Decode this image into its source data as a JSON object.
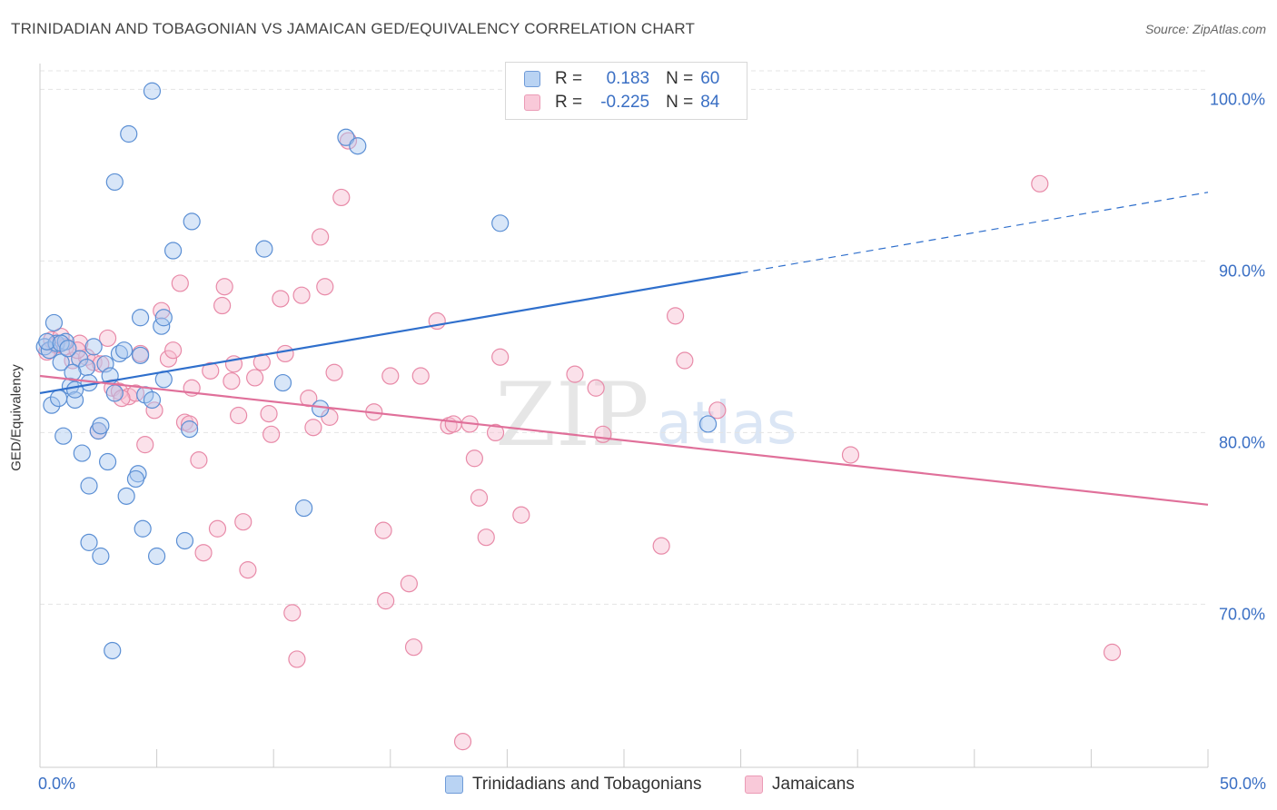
{
  "header": {
    "title": "TRINIDADIAN AND TOBAGONIAN VS JAMAICAN GED/EQUIVALENCY CORRELATION CHART",
    "source": "Source: ZipAtlas.com"
  },
  "legend": {
    "rows": [
      {
        "r_label": "R =",
        "r_value": "0.183",
        "n_label": "N =",
        "n_value": "60"
      },
      {
        "r_label": "R =",
        "r_value": "-0.225",
        "n_label": "N =",
        "n_value": "84"
      }
    ]
  },
  "bottom_legend": [
    "Trinidadians and Tobagonians",
    "Jamaicans"
  ],
  "watermark": {
    "zip": "ZIP",
    "atlas": "atlas"
  },
  "colors": {
    "blue_fill": "#a8c8f0",
    "blue_stroke": "#5b8fd4",
    "blue_line": "#2f6fcc",
    "pink_fill": "#f6bcd0",
    "pink_stroke": "#e88aa8",
    "pink_line": "#e0709a",
    "tick_text": "#3a6fc4"
  },
  "chart_data": {
    "type": "scatter",
    "title": "TRINIDADIAN AND TOBAGONIAN VS JAMAICAN GED/EQUIVALENCY CORRELATION CHART",
    "xlabel": "",
    "ylabel": "GED/Equivalency",
    "xlim": [
      0,
      50
    ],
    "ylim": [
      60.5,
      101.5
    ],
    "x_tick_labels": [
      "0.0%",
      "50.0%"
    ],
    "y_ticks": [
      70,
      80,
      90,
      100
    ],
    "y_tick_labels": [
      "70.0%",
      "80.0%",
      "90.0%",
      "100.0%"
    ],
    "grid": true,
    "series": [
      {
        "name": "Trinidadians and Tobagonians",
        "color": "blue",
        "R": 0.183,
        "N": 60,
        "trend": {
          "x0": 0,
          "y0": 82.3,
          "x1": 30,
          "y1": 89.3,
          "dashed_to_x": 50,
          "dashed_to_y": 94.0
        },
        "points": [
          [
            0.2,
            85.0
          ],
          [
            0.4,
            84.8
          ],
          [
            0.6,
            86.4
          ],
          [
            0.7,
            85.2
          ],
          [
            0.9,
            84.1
          ],
          [
            1.1,
            85.3
          ],
          [
            1.3,
            82.7
          ],
          [
            1.5,
            81.9
          ],
          [
            1.7,
            84.3
          ],
          [
            2.0,
            83.8
          ],
          [
            2.1,
            82.9
          ],
          [
            2.3,
            85.0
          ],
          [
            2.5,
            80.1
          ],
          [
            2.8,
            84.0
          ],
          [
            3.0,
            83.3
          ],
          [
            3.2,
            82.3
          ],
          [
            3.4,
            84.6
          ],
          [
            3.6,
            84.8
          ],
          [
            0.5,
            81.6
          ],
          [
            1.0,
            79.8
          ],
          [
            1.8,
            78.8
          ],
          [
            2.9,
            78.3
          ],
          [
            2.1,
            76.9
          ],
          [
            4.2,
            77.6
          ],
          [
            3.7,
            76.3
          ],
          [
            4.3,
            84.5
          ],
          [
            4.5,
            82.2
          ],
          [
            4.8,
            81.9
          ],
          [
            5.3,
            83.1
          ],
          [
            6.4,
            80.2
          ],
          [
            4.3,
            86.7
          ],
          [
            5.2,
            86.2
          ],
          [
            5.3,
            86.7
          ],
          [
            3.8,
            97.4
          ],
          [
            4.8,
            99.9
          ],
          [
            3.2,
            94.6
          ],
          [
            5.7,
            90.6
          ],
          [
            6.5,
            92.3
          ],
          [
            9.6,
            90.7
          ],
          [
            13.1,
            97.2
          ],
          [
            13.6,
            96.7
          ],
          [
            19.7,
            92.2
          ],
          [
            10.4,
            82.9
          ],
          [
            12.0,
            81.4
          ],
          [
            11.3,
            75.6
          ],
          [
            4.4,
            74.4
          ],
          [
            5.0,
            72.8
          ],
          [
            6.2,
            73.7
          ],
          [
            2.1,
            73.6
          ],
          [
            2.6,
            72.8
          ],
          [
            3.1,
            67.3
          ],
          [
            2.6,
            80.4
          ],
          [
            1.5,
            82.5
          ],
          [
            0.8,
            82.0
          ],
          [
            1.4,
            83.5
          ],
          [
            4.1,
            77.3
          ],
          [
            28.6,
            80.5
          ],
          [
            0.3,
            85.3
          ],
          [
            0.9,
            85.2
          ],
          [
            1.2,
            84.9
          ]
        ]
      },
      {
        "name": "Jamaicans",
        "color": "pink",
        "R": -0.225,
        "N": 84,
        "trend": {
          "x0": 0,
          "y0": 83.3,
          "x1": 50,
          "y1": 75.8
        },
        "points": [
          [
            0.3,
            84.7
          ],
          [
            0.5,
            85.4
          ],
          [
            0.7,
            85.1
          ],
          [
            0.9,
            85.6
          ],
          [
            1.1,
            85.0
          ],
          [
            1.4,
            84.2
          ],
          [
            1.7,
            85.2
          ],
          [
            2.0,
            84.4
          ],
          [
            2.3,
            84.1
          ],
          [
            2.6,
            84.0
          ],
          [
            2.9,
            85.5
          ],
          [
            3.1,
            82.6
          ],
          [
            3.4,
            82.4
          ],
          [
            3.8,
            82.1
          ],
          [
            4.1,
            82.3
          ],
          [
            4.3,
            84.6
          ],
          [
            4.5,
            79.3
          ],
          [
            4.9,
            81.3
          ],
          [
            5.2,
            87.1
          ],
          [
            5.5,
            84.3
          ],
          [
            5.7,
            84.8
          ],
          [
            6.0,
            88.7
          ],
          [
            6.2,
            80.6
          ],
          [
            6.5,
            82.6
          ],
          [
            6.8,
            78.4
          ],
          [
            7.0,
            73.0
          ],
          [
            7.3,
            83.6
          ],
          [
            7.6,
            74.4
          ],
          [
            7.8,
            87.4
          ],
          [
            7.9,
            88.5
          ],
          [
            8.2,
            83.0
          ],
          [
            8.5,
            81.0
          ],
          [
            8.7,
            74.8
          ],
          [
            8.9,
            72.0
          ],
          [
            9.2,
            83.2
          ],
          [
            9.5,
            84.1
          ],
          [
            9.8,
            81.1
          ],
          [
            9.9,
            79.9
          ],
          [
            10.3,
            87.8
          ],
          [
            10.5,
            84.6
          ],
          [
            10.8,
            69.5
          ],
          [
            11.0,
            66.8
          ],
          [
            11.2,
            88.0
          ],
          [
            11.5,
            82.0
          ],
          [
            11.7,
            80.3
          ],
          [
            12.0,
            91.4
          ],
          [
            12.2,
            88.5
          ],
          [
            12.4,
            80.9
          ],
          [
            12.6,
            83.5
          ],
          [
            12.9,
            93.7
          ],
          [
            13.2,
            97.0
          ],
          [
            14.3,
            81.2
          ],
          [
            14.7,
            74.3
          ],
          [
            14.8,
            70.2
          ],
          [
            15.0,
            83.3
          ],
          [
            15.8,
            71.2
          ],
          [
            16.0,
            67.5
          ],
          [
            16.3,
            83.3
          ],
          [
            17.0,
            86.5
          ],
          [
            17.5,
            80.4
          ],
          [
            17.7,
            80.5
          ],
          [
            18.1,
            62.0
          ],
          [
            18.4,
            80.5
          ],
          [
            18.6,
            78.5
          ],
          [
            18.8,
            76.2
          ],
          [
            19.1,
            73.9
          ],
          [
            19.5,
            80.0
          ],
          [
            19.7,
            84.4
          ],
          [
            20.6,
            75.2
          ],
          [
            22.9,
            83.4
          ],
          [
            23.8,
            82.6
          ],
          [
            24.1,
            79.9
          ],
          [
            26.6,
            73.4
          ],
          [
            27.2,
            86.8
          ],
          [
            27.6,
            84.2
          ],
          [
            29.0,
            81.3
          ],
          [
            34.7,
            78.7
          ],
          [
            42.8,
            94.5
          ],
          [
            45.9,
            67.2
          ],
          [
            3.5,
            82.0
          ],
          [
            2.5,
            80.1
          ],
          [
            1.6,
            84.8
          ],
          [
            6.4,
            80.5
          ],
          [
            8.3,
            84.0
          ]
        ]
      }
    ]
  }
}
